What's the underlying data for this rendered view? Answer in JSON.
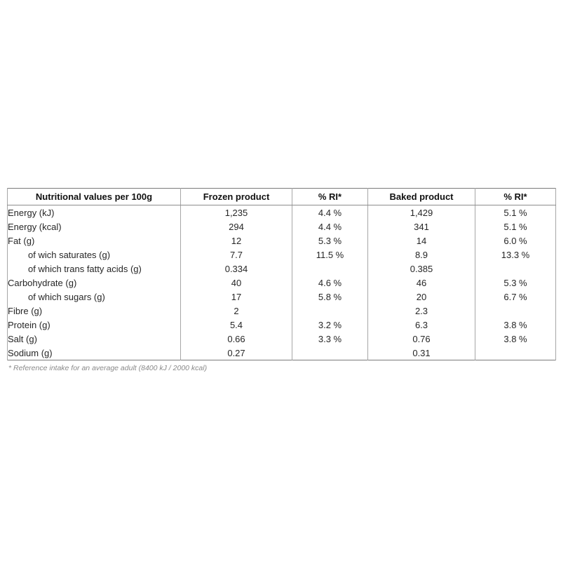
{
  "colors": {
    "background": "#ffffff",
    "outer_border": "#7a7a7a",
    "inner_border": "#a6a6a6",
    "header_text": "#111111",
    "body_text": "#262626",
    "footnote_text": "#8a8a8a"
  },
  "table": {
    "columns": [
      "Nutritional values per 100g",
      "Frozen product",
      "% RI*",
      "Baked product",
      "% RI*"
    ],
    "rows": [
      {
        "label": "Energy (kJ)",
        "indent": false,
        "frozen": "1,235",
        "frozen_ri": "4.4 %",
        "baked": "1,429",
        "baked_ri": "5.1 %"
      },
      {
        "label": "Energy (kcal)",
        "indent": false,
        "frozen": "294",
        "frozen_ri": "4.4 %",
        "baked": "341",
        "baked_ri": "5.1 %"
      },
      {
        "label": "Fat (g)",
        "indent": false,
        "frozen": "12",
        "frozen_ri": "5.3 %",
        "baked": "14",
        "baked_ri": "6.0 %"
      },
      {
        "label": "of wich saturates (g)",
        "indent": true,
        "frozen": "7.7",
        "frozen_ri": "11.5 %",
        "baked": "8.9",
        "baked_ri": "13.3 %"
      },
      {
        "label": "of which trans fatty acids (g)",
        "indent": true,
        "frozen": "0.334",
        "frozen_ri": "",
        "baked": "0.385",
        "baked_ri": ""
      },
      {
        "label": "Carbohydrate (g)",
        "indent": false,
        "frozen": "40",
        "frozen_ri": "4.6 %",
        "baked": "46",
        "baked_ri": "5.3 %"
      },
      {
        "label": "of which sugars (g)",
        "indent": true,
        "frozen": "17",
        "frozen_ri": "5.8 %",
        "baked": "20",
        "baked_ri": "6.7 %"
      },
      {
        "label": "Fibre (g)",
        "indent": false,
        "frozen": "2",
        "frozen_ri": "",
        "baked": "2.3",
        "baked_ri": ""
      },
      {
        "label": "Protein (g)",
        "indent": false,
        "frozen": "5.4",
        "frozen_ri": "3.2 %",
        "baked": "6.3",
        "baked_ri": "3.8 %"
      },
      {
        "label": "Salt (g)",
        "indent": false,
        "frozen": "0.66",
        "frozen_ri": "3.3 %",
        "baked": "0.76",
        "baked_ri": "3.8 %"
      },
      {
        "label": "Sodium (g)",
        "indent": false,
        "frozen": "0.27",
        "frozen_ri": "",
        "baked": "0.31",
        "baked_ri": ""
      }
    ],
    "footnote": "* Reference intake for an average adult (8400 kJ / 2000 kcal)"
  }
}
